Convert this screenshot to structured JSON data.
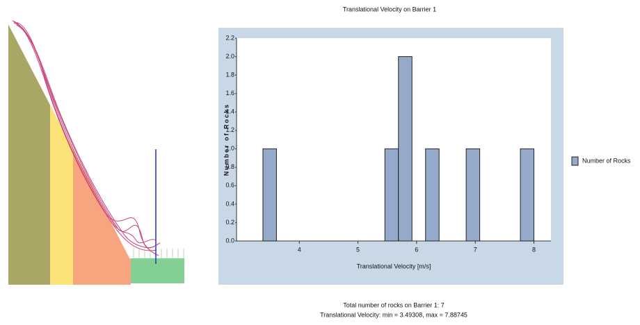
{
  "chart_data": {
    "type": "histogram",
    "title": "Translational Velocity on Barrier 1",
    "x_label": "Translational Velocity [m/s]",
    "y_label": "Number of Rocks",
    "bins": [
      3.38,
      3.611,
      3.842,
      4.073,
      4.304,
      4.535,
      4.766,
      4.997,
      5.228,
      5.459,
      5.69,
      5.921,
      6.152,
      6.383,
      6.614,
      6.845,
      7.076,
      7.307,
      7.538,
      7.769,
      8.0
    ],
    "series": [
      {
        "name": "Number of Rocks",
        "color": "#95aacb",
        "values": [
          1,
          0,
          0,
          0,
          0,
          0,
          0,
          0,
          0,
          1,
          2,
          0,
          1,
          0,
          0,
          1,
          0,
          0,
          0,
          1
        ]
      }
    ],
    "xlim": [
      2.93,
      8.29
    ],
    "ylim": [
      0,
      2.2
    ],
    "xticks": [
      4,
      5,
      6,
      7,
      8
    ],
    "yticks": [
      {
        "value": 0,
        "label": "0.0"
      },
      0.2,
      0.4,
      0.6,
      0.8,
      {
        "value": 1,
        "label": "1.0"
      },
      1.2,
      1.4,
      1.6,
      1.8,
      {
        "value": 2,
        "label": "2.0"
      },
      2.2
    ],
    "legend": "right",
    "grid": false
  },
  "summary": {
    "total": "Total number of rocks on Barrier 1: 7",
    "range": "Translational Velocity: min = 3.49308, max = 7.88745"
  }
}
